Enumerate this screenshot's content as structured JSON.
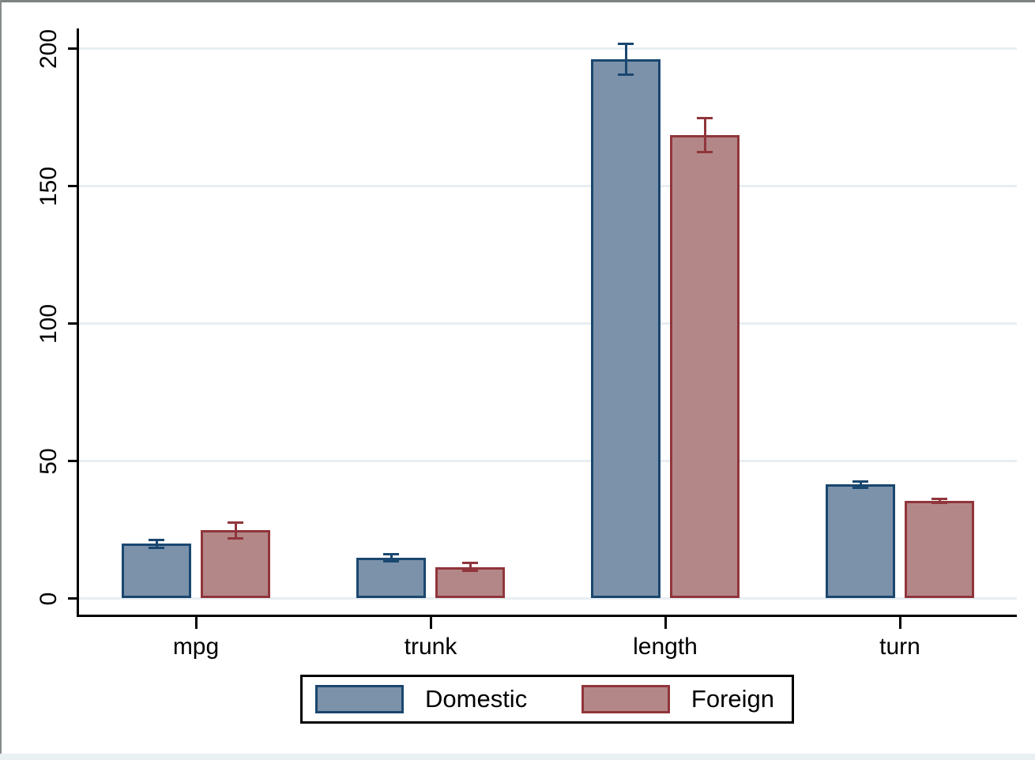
{
  "chart_data": {
    "type": "bar",
    "title": "",
    "xlabel": "",
    "ylabel": "",
    "categories": [
      "mpg",
      "trunk",
      "length",
      "turn"
    ],
    "series": [
      {
        "name": "Domestic",
        "fill": "#7b92aa",
        "border": "#1a476f",
        "values": [
          19.83,
          14.75,
          196.13,
          41.44
        ],
        "ci_low": [
          18.51,
          13.55,
          190.55,
          40.34
        ],
        "ci_high": [
          21.15,
          15.95,
          201.72,
          42.55
        ]
      },
      {
        "name": "Foreign",
        "fill": "#b38788",
        "border": "#90353b",
        "values": [
          24.77,
          11.41,
          168.55,
          35.41
        ],
        "ci_low": [
          21.84,
          9.98,
          162.48,
          34.74
        ],
        "ci_high": [
          27.7,
          12.84,
          174.61,
          36.07
        ]
      }
    ],
    "y_ticks": [
      0,
      50,
      100,
      150,
      200
    ],
    "ylim": [
      0,
      200
    ],
    "grid": true,
    "error_bars": "95% CI",
    "legend_position": "bottom"
  },
  "legend": {
    "items": [
      {
        "label": "Domestic",
        "fill": "#7b92aa",
        "border": "#1a476f"
      },
      {
        "label": "Foreign",
        "fill": "#b38788",
        "border": "#90353b"
      }
    ]
  },
  "colors": {
    "gridline": "#e8eef2",
    "axis": "#000000",
    "background": "#ffffff",
    "frame_gray": "#7d8383",
    "bottom_strip": "#e8f0f2"
  }
}
